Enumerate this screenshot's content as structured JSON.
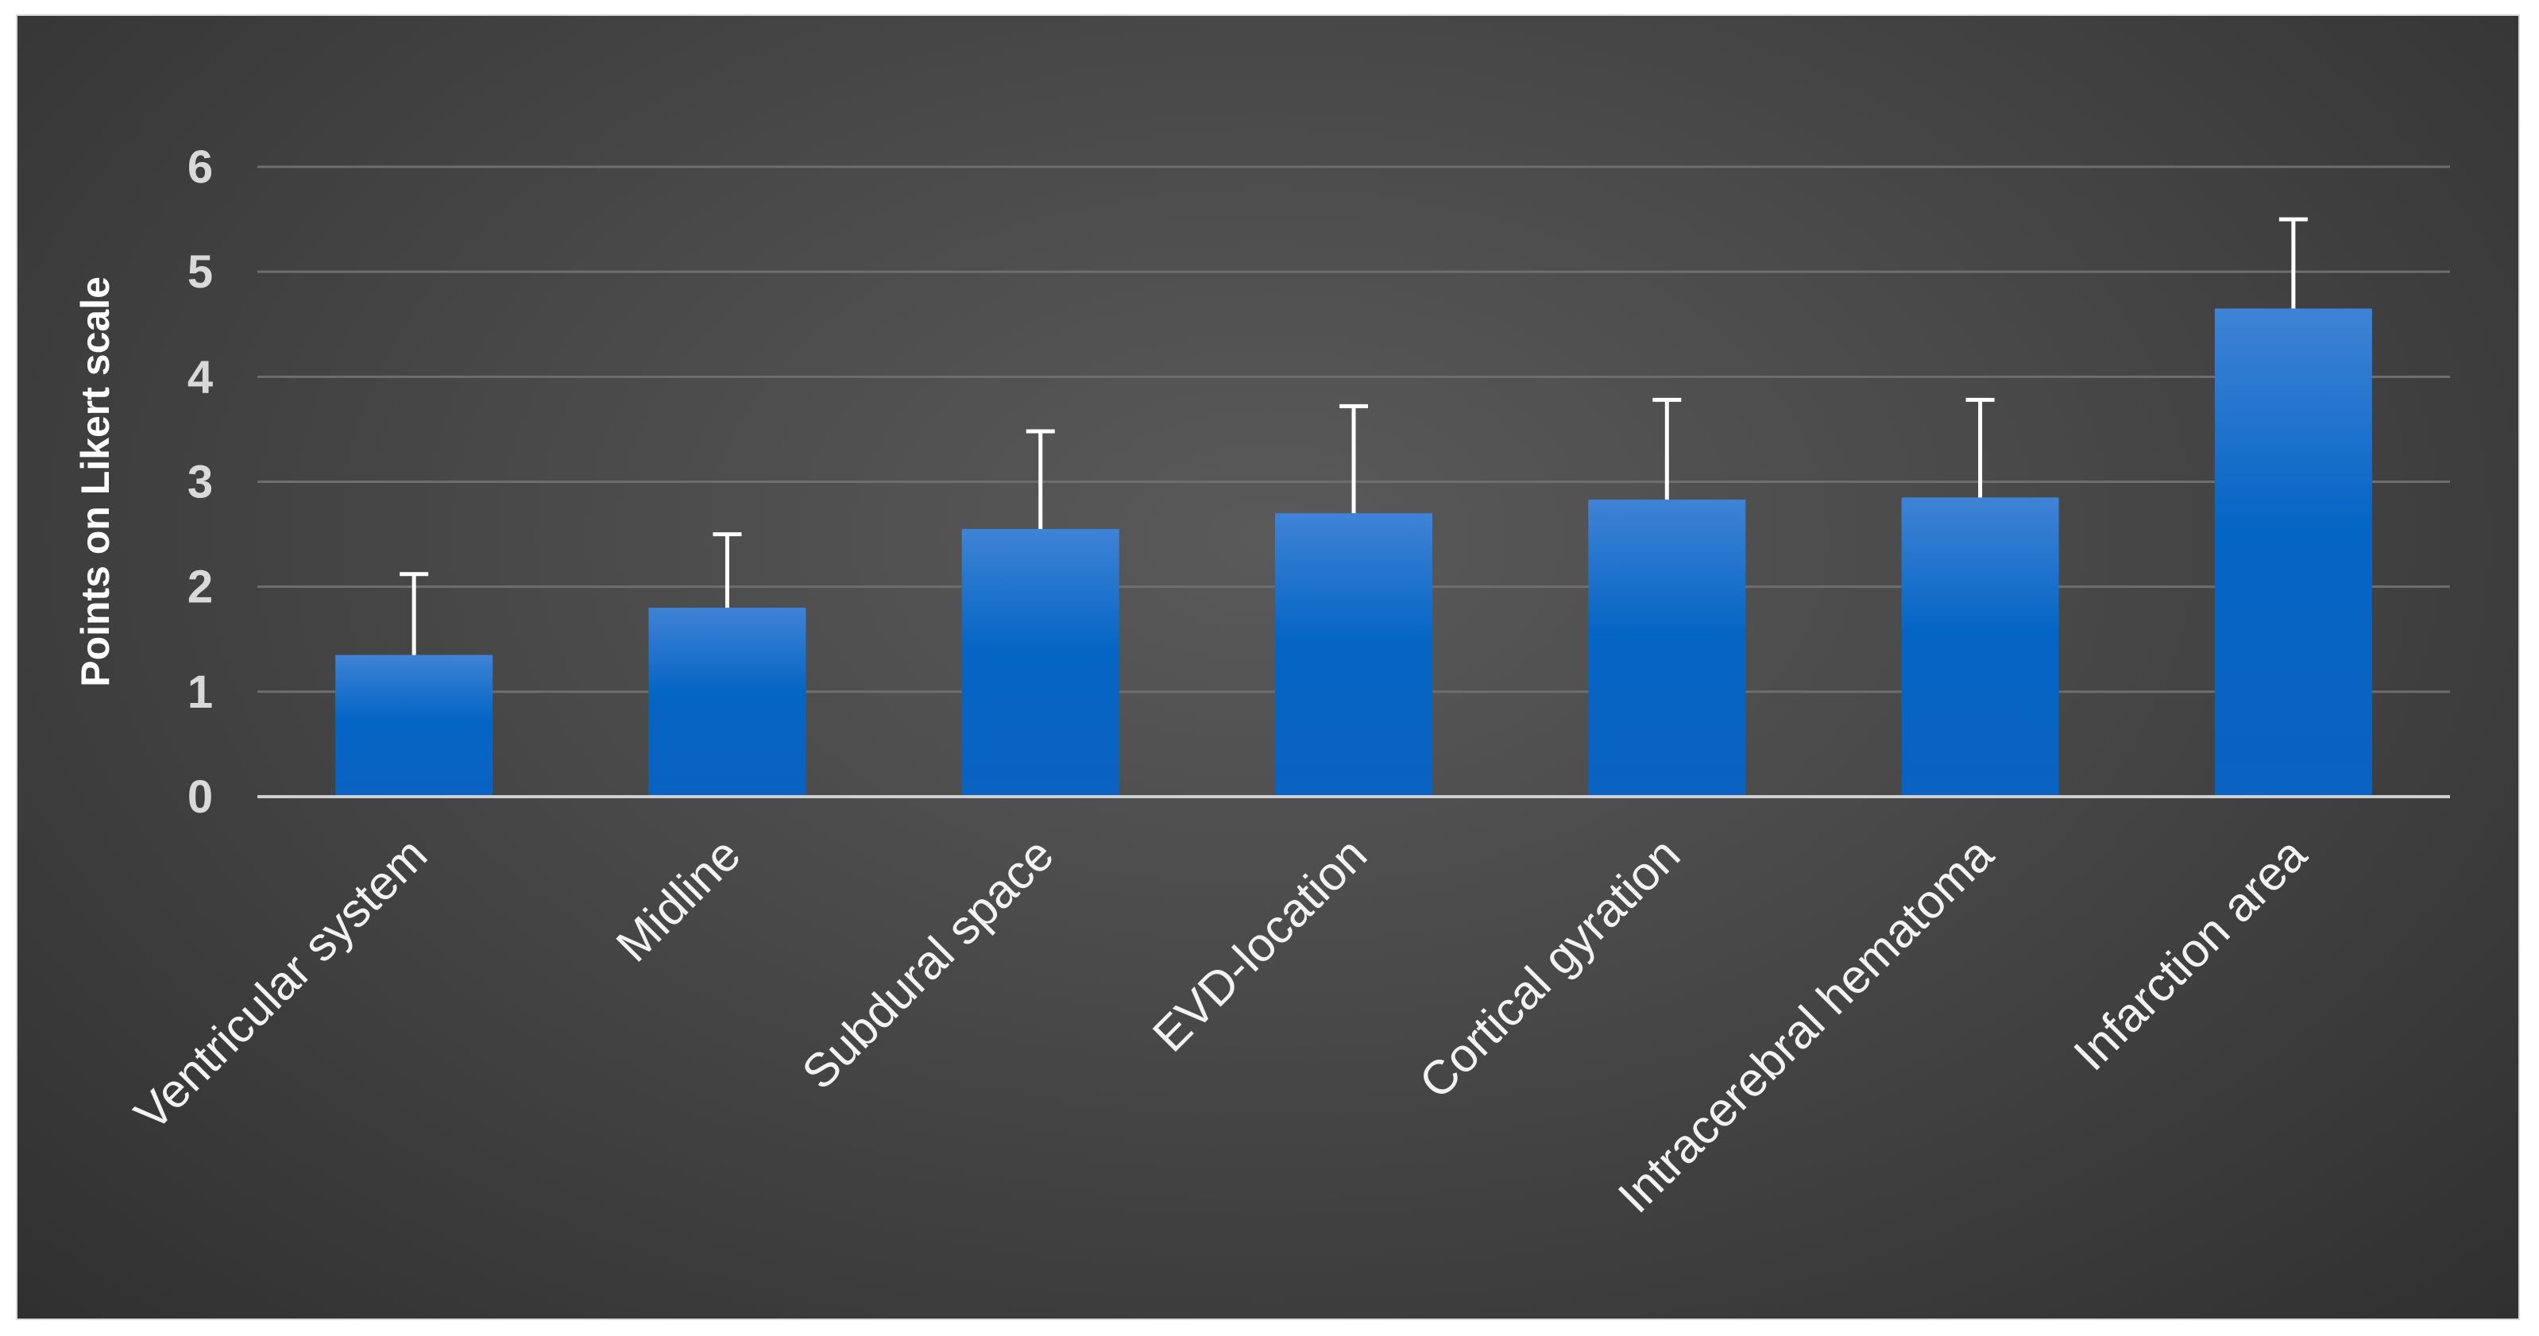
{
  "chart_data": {
    "type": "bar",
    "title": "",
    "xlabel": "",
    "ylabel": "Points on Likert scale",
    "ylim": [
      0,
      6
    ],
    "yticks": [
      0,
      1,
      2,
      3,
      4,
      5,
      6
    ],
    "grid": true,
    "legend": "none",
    "categories": [
      "Ventricular system",
      "Midline",
      "Subdural space",
      "EVD-location",
      "Cortical gyration",
      "Intracerebral hematoma",
      "Infarction area"
    ],
    "values": [
      1.35,
      1.8,
      2.55,
      2.7,
      2.83,
      2.85,
      4.65
    ],
    "error_upper": [
      0.77,
      0.7,
      0.93,
      1.02,
      0.95,
      0.93,
      0.85
    ],
    "colors": {
      "bar_top": "#3f83d6",
      "bar_mid": "#0565c4",
      "bar_bottom": "#0a62c2",
      "error_bar": "#ffffff",
      "grid": "#6e6e6e",
      "axis": "#cfcfcf",
      "background": "#484848"
    }
  }
}
